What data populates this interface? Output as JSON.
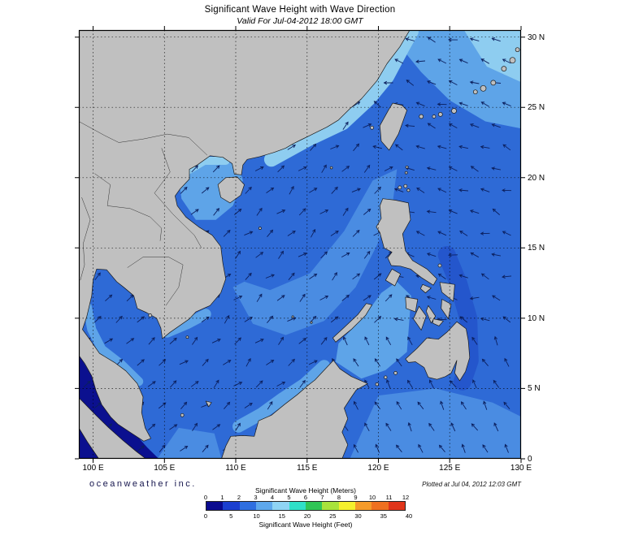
{
  "header": {
    "title": "Significant Wave Height with Wave Direction",
    "subtitle": "Valid For Jul-04-2012 18:00 GMT"
  },
  "axes": {
    "lon_labels": [
      "100 E",
      "105 E",
      "110 E",
      "115 E",
      "120 E",
      "125 E",
      "130 E"
    ],
    "lat_labels": [
      "30 N",
      "25 N",
      "20 N",
      "15 N",
      "10 N",
      "5 N",
      "0"
    ]
  },
  "footer": {
    "branding": "oceanweather inc.",
    "plotted_at": "Plotted at Jul 04, 2012 12:03 GMT"
  },
  "legend": {
    "meters_label": "Significant Wave Height (Meters)",
    "feet_label": "Significant Wave Height (Feet)",
    "meters_ticks": [
      "0",
      "1",
      "2",
      "3",
      "4",
      "5",
      "6",
      "7",
      "8",
      "9",
      "10",
      "11",
      "12"
    ],
    "feet_ticks": [
      "0",
      "5",
      "10",
      "15",
      "20",
      "25",
      "30",
      "35",
      "40"
    ],
    "colors": [
      "#0b0b8f",
      "#1b3fd0",
      "#2f6fe0",
      "#5ea8ec",
      "#8fd4f4",
      "#2fe0c8",
      "#30c556",
      "#a8e23c",
      "#f5f02d",
      "#f59b2a",
      "#ef7020",
      "#e0351a"
    ]
  },
  "map": {
    "colors": {
      "land": "#c0c0c0",
      "coastline": "#1a1a1a",
      "ocean_base": "#2e6ad6",
      "ocean_mid_light": "#4a8ce2",
      "ocean_light": "#5ea4e8",
      "ocean_bright": "#8ecdf0",
      "ocean_dark": "#2456cc",
      "ocean_calm": "#0b108f",
      "arrows": "#0b1f5e",
      "grid": "#000000"
    }
  }
}
